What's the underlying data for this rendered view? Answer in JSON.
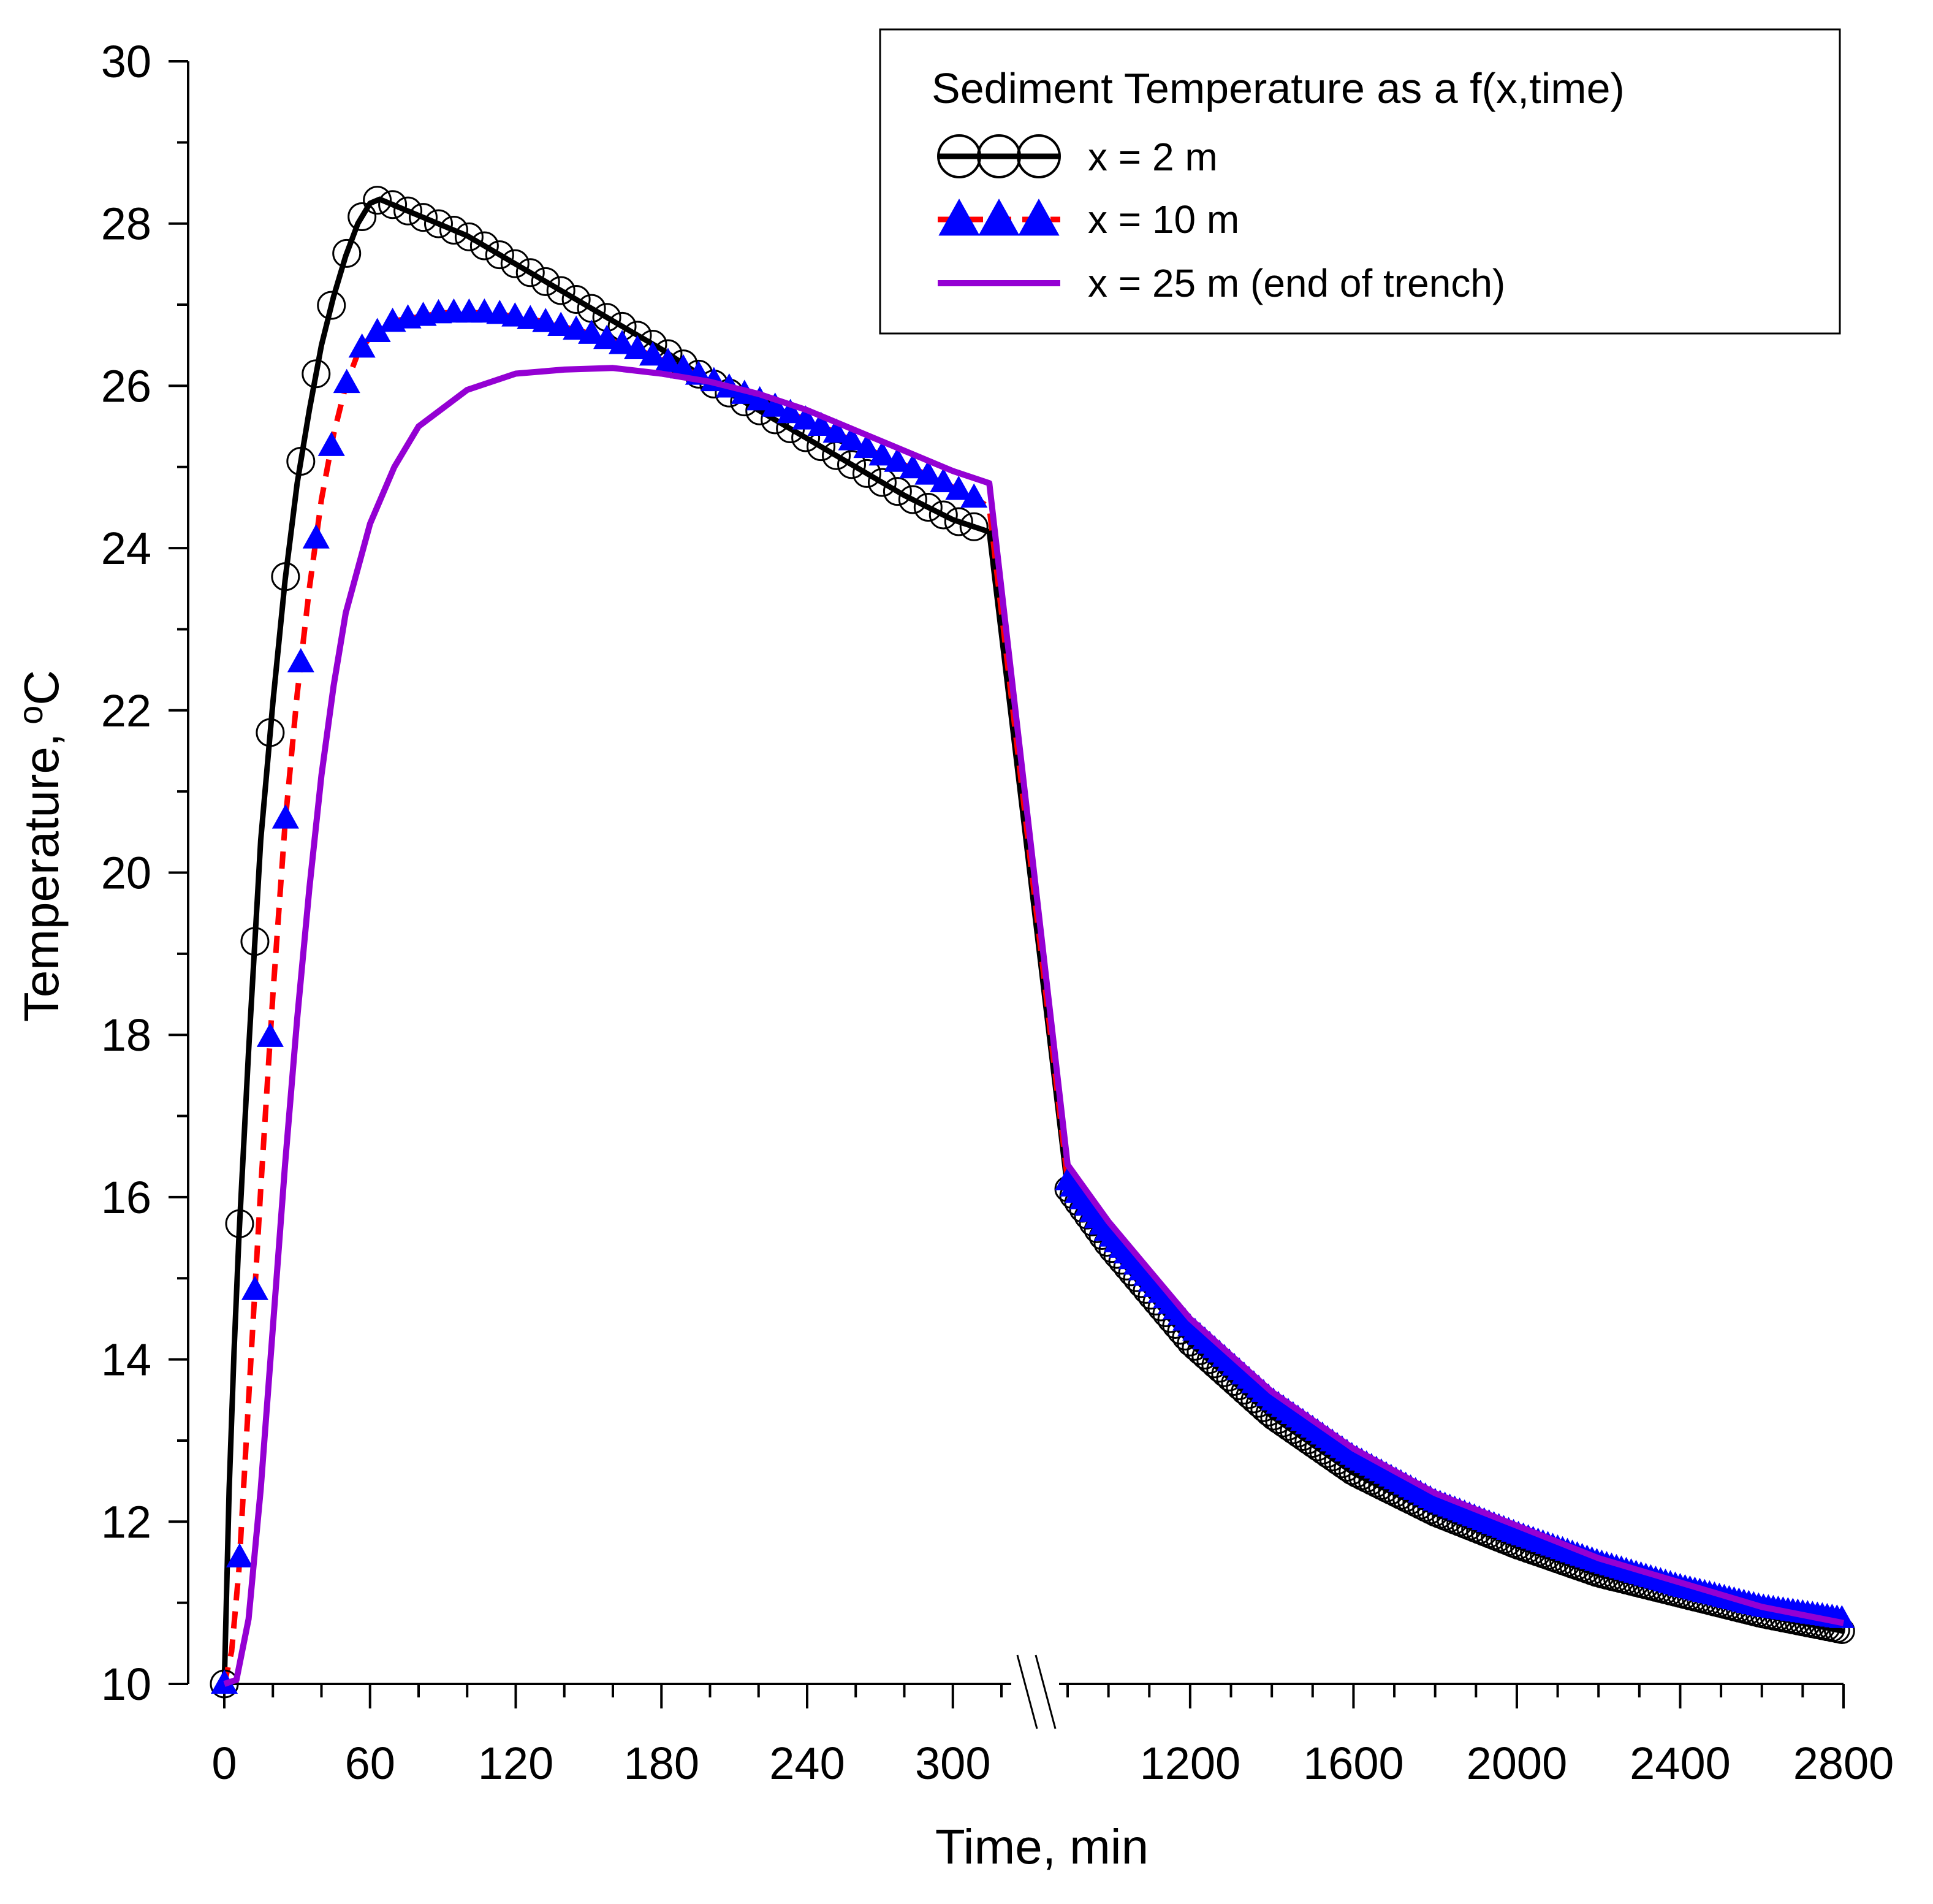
{
  "chart_data": {
    "type": "line",
    "xlabel": "Time, min",
    "ylabel_main": "Temperature,",
    "ylabel_super": "o",
    "ylabel_unit": "C",
    "ylim": [
      10,
      30
    ],
    "yticks": [
      "10",
      "12",
      "14",
      "16",
      "18",
      "20",
      "22",
      "24",
      "26",
      "28",
      "30"
    ],
    "xlim_segment1": [
      0,
      320
    ],
    "xlim_segment2": [
      900,
      2800
    ],
    "xticks_segment1": [
      "0",
      "60",
      "120",
      "180",
      "240",
      "300"
    ],
    "xticks_segment2": [
      "1200",
      "1600",
      "2000",
      "2400",
      "2800"
    ],
    "axis_break": "between 320 and 900 min",
    "legend": {
      "title": "Sediment Temperature as a f(x,time)",
      "position": "top-right"
    },
    "colors": {
      "x2": "#000000",
      "x10_line": "#ff0000",
      "x10_marker": "#0000ff",
      "x25": "#9400d3"
    },
    "series": [
      {
        "name": "x = 2 m",
        "style": "solid black line with open circle markers",
        "segment1": [
          [
            0,
            10
          ],
          [
            2,
            12.4
          ],
          [
            4,
            14.1
          ],
          [
            6,
            15.5
          ],
          [
            10,
            17.8
          ],
          [
            15,
            20.4
          ],
          [
            20,
            22.1
          ],
          [
            25,
            23.6
          ],
          [
            30,
            24.8
          ],
          [
            35,
            25.7
          ],
          [
            40,
            26.5
          ],
          [
            45,
            27.1
          ],
          [
            50,
            27.6
          ],
          [
            55,
            28
          ],
          [
            60,
            28.25
          ],
          [
            64,
            28.3
          ],
          [
            80,
            28.1
          ],
          [
            100,
            27.85
          ],
          [
            120,
            27.5
          ],
          [
            140,
            27.15
          ],
          [
            160,
            26.8
          ],
          [
            180,
            26.45
          ],
          [
            200,
            26.05
          ],
          [
            220,
            25.7
          ],
          [
            240,
            25.35
          ],
          [
            260,
            25
          ],
          [
            280,
            24.65
          ],
          [
            300,
            24.35
          ],
          [
            315,
            24.2
          ]
        ],
        "segment2": [
          [
            900,
            16.1
          ],
          [
            1000,
            15.4
          ],
          [
            1200,
            14.2
          ],
          [
            1400,
            13.3
          ],
          [
            1600,
            12.6
          ],
          [
            1800,
            12.1
          ],
          [
            2000,
            11.7
          ],
          [
            2200,
            11.35
          ],
          [
            2400,
            11.1
          ],
          [
            2600,
            10.85
          ],
          [
            2800,
            10.65
          ]
        ]
      },
      {
        "name": "x = 10 m",
        "style": "dashed red line with filled blue triangle markers",
        "segment1": [
          [
            0,
            10
          ],
          [
            3,
            10.4
          ],
          [
            6,
            11.4
          ],
          [
            10,
            13.5
          ],
          [
            15,
            16.1
          ],
          [
            20,
            18.5
          ],
          [
            25,
            20.6
          ],
          [
            30,
            22.2
          ],
          [
            35,
            23.5
          ],
          [
            40,
            24.6
          ],
          [
            45,
            25.4
          ],
          [
            50,
            26
          ],
          [
            55,
            26.4
          ],
          [
            60,
            26.6
          ],
          [
            70,
            26.8
          ],
          [
            90,
            26.9
          ],
          [
            110,
            26.9
          ],
          [
            130,
            26.8
          ],
          [
            150,
            26.65
          ],
          [
            170,
            26.45
          ],
          [
            190,
            26.2
          ],
          [
            210,
            25.95
          ],
          [
            230,
            25.7
          ],
          [
            250,
            25.45
          ],
          [
            270,
            25.15
          ],
          [
            290,
            24.9
          ],
          [
            310,
            24.6
          ],
          [
            315,
            24.5
          ]
        ],
        "segment2": [
          [
            900,
            16.2
          ],
          [
            1000,
            15.55
          ],
          [
            1200,
            14.4
          ],
          [
            1400,
            13.5
          ],
          [
            1600,
            12.8
          ],
          [
            1800,
            12.25
          ],
          [
            2000,
            11.85
          ],
          [
            2200,
            11.5
          ],
          [
            2400,
            11.2
          ],
          [
            2600,
            10.95
          ],
          [
            2800,
            10.8
          ]
        ]
      },
      {
        "name": "x = 25 m (end of trench)",
        "style": "solid purple line",
        "segment1": [
          [
            0,
            10
          ],
          [
            5,
            10.05
          ],
          [
            10,
            10.8
          ],
          [
            15,
            12.4
          ],
          [
            20,
            14.4
          ],
          [
            25,
            16.4
          ],
          [
            30,
            18.2
          ],
          [
            35,
            19.8
          ],
          [
            40,
            21.2
          ],
          [
            45,
            22.3
          ],
          [
            50,
            23.2
          ],
          [
            60,
            24.3
          ],
          [
            70,
            25
          ],
          [
            80,
            25.5
          ],
          [
            100,
            25.95
          ],
          [
            120,
            26.15
          ],
          [
            140,
            26.2
          ],
          [
            160,
            26.22
          ],
          [
            180,
            26.15
          ],
          [
            200,
            26.05
          ],
          [
            220,
            25.9
          ],
          [
            240,
            25.7
          ],
          [
            260,
            25.45
          ],
          [
            280,
            25.2
          ],
          [
            300,
            24.95
          ],
          [
            315,
            24.8
          ]
        ],
        "segment2": [
          [
            900,
            16.4
          ],
          [
            1000,
            15.7
          ],
          [
            1200,
            14.5
          ],
          [
            1400,
            13.6
          ],
          [
            1600,
            12.9
          ],
          [
            1800,
            12.35
          ],
          [
            2000,
            11.95
          ],
          [
            2200,
            11.55
          ],
          [
            2400,
            11.25
          ],
          [
            2600,
            10.95
          ],
          [
            2800,
            10.75
          ]
        ]
      }
    ]
  }
}
